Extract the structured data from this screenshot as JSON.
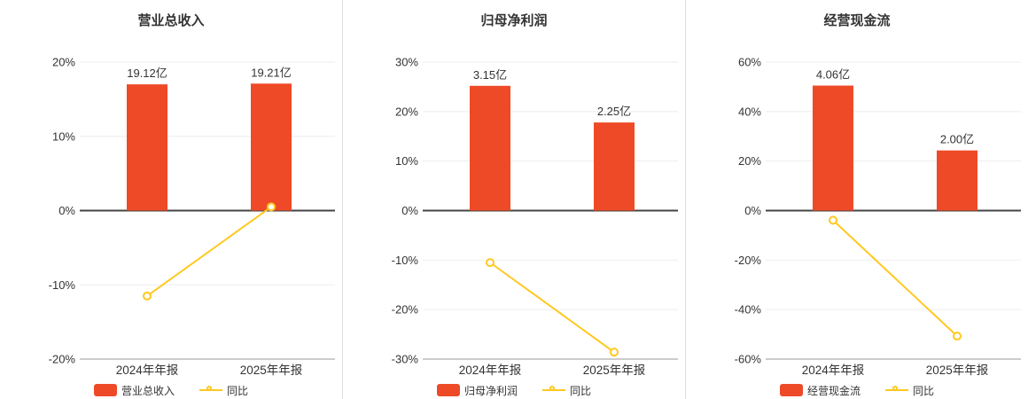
{
  "page": {
    "background": "#ffffff"
  },
  "colors": {
    "bar": "#ee4a27",
    "line": "#ffc81f",
    "marker_fill": "#ffffff",
    "text": "#333333",
    "zero_axis": "#444444",
    "bottom_axis": "#999999",
    "grid": "#eeeeee",
    "divider": "#dddddd"
  },
  "chart_data": [
    {
      "type": "bar",
      "title": "营业总收入",
      "categories": [
        "2024年年报",
        "2025年年报"
      ],
      "ylim": [
        -20,
        20
      ],
      "yticks": [
        20,
        10,
        0,
        -10,
        -20
      ],
      "ytick_suffix": "%",
      "legend_position": "bottom",
      "grid": true,
      "series": [
        {
          "kind": "bar",
          "name": "营业总收入",
          "unit": "亿",
          "values": [
            19.12,
            19.21
          ],
          "labels": [
            "19.12亿",
            "19.21亿"
          ],
          "plotted_height_pct": [
            17.0,
            17.1
          ]
        },
        {
          "kind": "line",
          "name": "同比",
          "values_pct": [
            -11.5,
            0.5
          ]
        }
      ]
    },
    {
      "type": "bar",
      "title": "归母净利润",
      "categories": [
        "2024年年报",
        "2025年年报"
      ],
      "ylim": [
        -30,
        30
      ],
      "yticks": [
        30,
        20,
        10,
        0,
        -10,
        -20,
        -30
      ],
      "ytick_suffix": "%",
      "legend_position": "bottom",
      "grid": true,
      "series": [
        {
          "kind": "bar",
          "name": "归母净利润",
          "unit": "亿",
          "values": [
            3.15,
            2.25
          ],
          "labels": [
            "3.15亿",
            "2.25亿"
          ],
          "plotted_height_pct": [
            25.2,
            17.8
          ]
        },
        {
          "kind": "line",
          "name": "同比",
          "values_pct": [
            -10.5,
            -28.6
          ]
        }
      ]
    },
    {
      "type": "bar",
      "title": "经营现金流",
      "categories": [
        "2024年年报",
        "2025年年报"
      ],
      "ylim": [
        -60,
        60
      ],
      "yticks": [
        60,
        40,
        20,
        0,
        -20,
        -40,
        -60
      ],
      "ytick_suffix": "%",
      "legend_position": "bottom",
      "grid": true,
      "series": [
        {
          "kind": "bar",
          "name": "经营现金流",
          "unit": "亿",
          "values": [
            4.06,
            2.0
          ],
          "labels": [
            "4.06亿",
            "2.00亿"
          ],
          "plotted_height_pct": [
            50.5,
            24.3
          ]
        },
        {
          "kind": "line",
          "name": "同比",
          "values_pct": [
            -3.9,
            -50.7
          ]
        }
      ]
    }
  ]
}
